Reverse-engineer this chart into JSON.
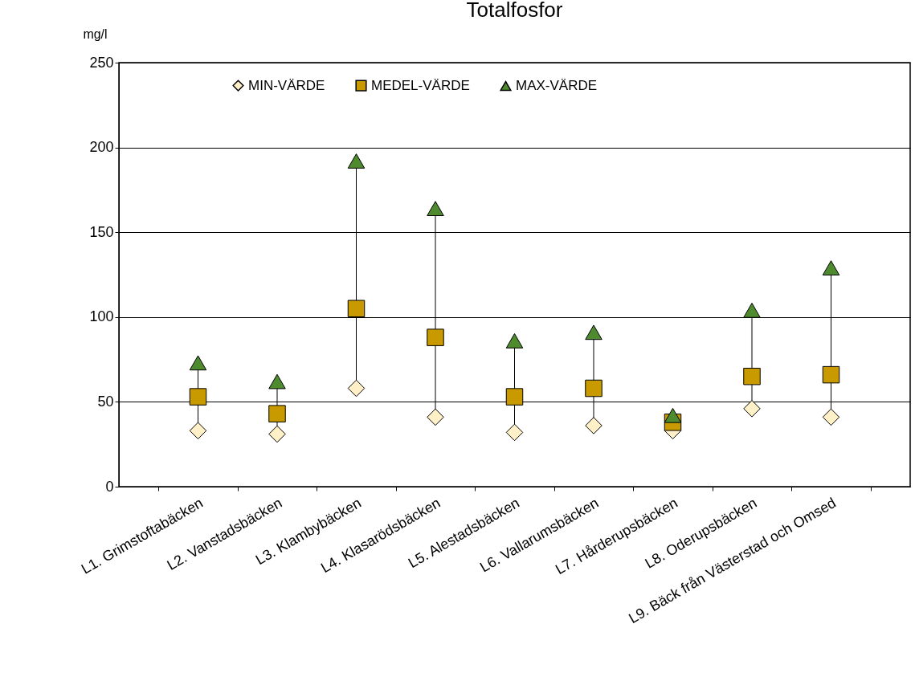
{
  "chart_data": {
    "type": "scatter",
    "title": "Totalfosfor",
    "ylabel": "mg/l",
    "categories": [
      "L1. Grimstoftabäcken",
      "L2. Vanstadsbäcken",
      "L3. Klambybäcken",
      "L4. Klasarödsbäcken",
      "L5. Alestadsbäcken",
      "L6. Vallarumsbäcken",
      "L7. Hårderupsbäcken",
      "L8. Oderupsbäcken",
      "L9. Bäck från Västerstad och Omsed"
    ],
    "series": [
      {
        "name": "MIN-VÄRDE",
        "color": "#fff0c8",
        "marker": "diamond",
        "values": [
          33,
          31,
          58,
          41,
          32,
          36,
          33,
          46,
          41
        ]
      },
      {
        "name": "MEDEL-VÄRDE",
        "color": "#c89a00",
        "marker": "square",
        "values": [
          53,
          43,
          105,
          88,
          53,
          58,
          38,
          65,
          66
        ]
      },
      {
        "name": "MAX-VÄRDE",
        "color": "#4e8a2e",
        "marker": "triangle",
        "values": [
          73,
          62,
          192,
          164,
          86,
          91,
          42,
          104,
          129
        ]
      }
    ],
    "ylim": [
      0,
      250
    ],
    "yticks": [
      0,
      50,
      100,
      150,
      200,
      250
    ],
    "grid": "y",
    "legend": "top"
  }
}
